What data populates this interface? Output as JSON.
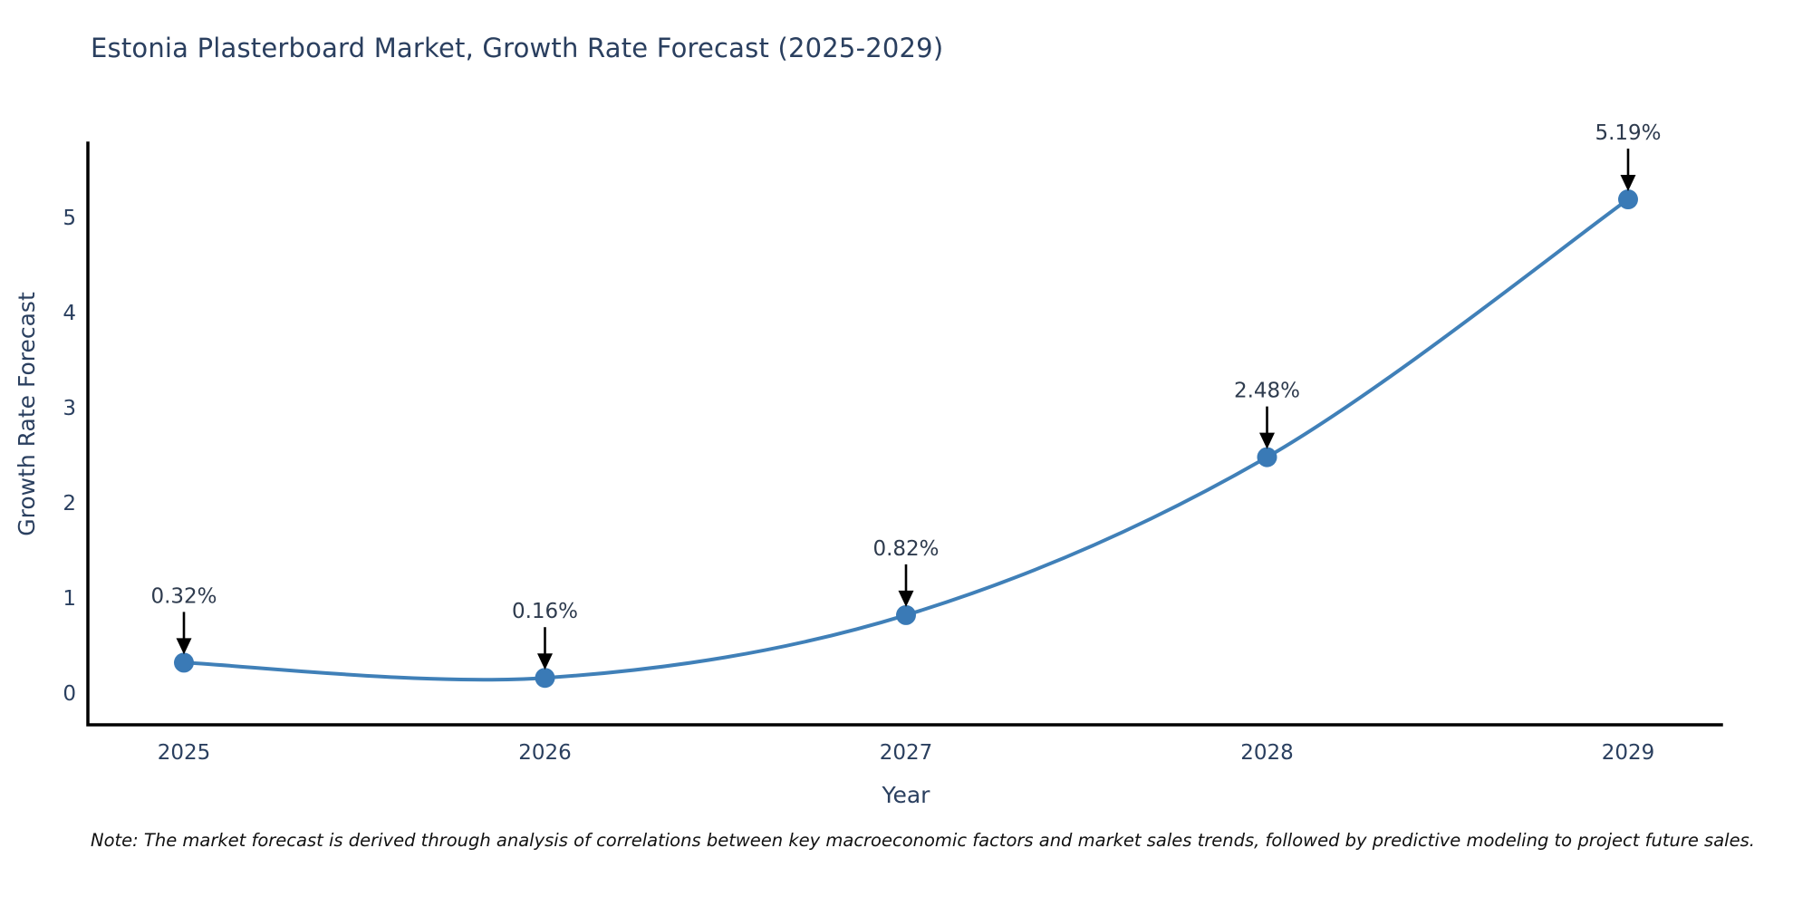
{
  "title": "Estonia Plasterboard Market, Growth Rate Forecast (2025-2029)",
  "note": "Note: The market forecast is derived through analysis of correlations between key macroeconomic factors and market sales trends, followed by predictive modeling to project future sales.",
  "chart_data": {
    "type": "line",
    "line_shape": "spline",
    "title": "Estonia Plasterboard Market, Growth Rate Forecast (2025-2029)",
    "xlabel": "Year",
    "ylabel": "Growth Rate Forecast",
    "categories": [
      "2025",
      "2026",
      "2027",
      "2028",
      "2029"
    ],
    "series": [
      {
        "name": "Growth Rate Forecast",
        "values": [
          0.32,
          0.16,
          0.82,
          2.48,
          5.19
        ]
      }
    ],
    "point_labels": [
      "0.32%",
      "0.16%",
      "0.82%",
      "2.48%",
      "5.19%"
    ],
    "yticks": [
      0,
      1,
      2,
      3,
      4,
      5
    ],
    "ylim": [
      -0.35,
      5.8
    ],
    "grid": false,
    "legend": "none",
    "annotation_style": "value label with downward black arrow onto each marker",
    "colors": {
      "line": "#4080b8",
      "marker": "#3a7ab6",
      "axis": "#000000",
      "tick_label": "#2a3f5f",
      "point_label": "#2e3b4e",
      "arrow": "#000000",
      "title": "#2a3f5f",
      "background": "#ffffff"
    }
  }
}
